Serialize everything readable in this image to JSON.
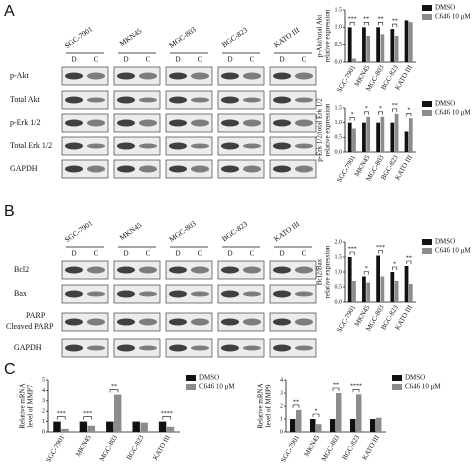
{
  "panels": {
    "a": "A",
    "b": "B",
    "c": "C"
  },
  "blot_a": {
    "cell_lines": [
      "SGC-7901",
      "MKN45",
      "MGC-803",
      "BGC-823",
      "KATO III"
    ],
    "lane_labels": [
      "D",
      "C"
    ],
    "rows": [
      "p-Akt",
      "Total Akt",
      "p-Erk 1/2",
      "Total Erk 1/2",
      "GAPDH"
    ]
  },
  "blot_b": {
    "cell_lines": [
      "SGC-7901",
      "MKN45",
      "MGC-803",
      "BGC-823",
      "KATO III"
    ],
    "lane_labels": [
      "D",
      "C"
    ],
    "rows": [
      "Bcl2",
      "Bax",
      "PARP",
      "Cleaved PARP",
      "GAPDH"
    ]
  },
  "chart_data": [
    {
      "type": "bar",
      "y_label": [
        "p-Akt/total Akt",
        "relative expression"
      ],
      "categories": [
        "SGC-7901",
        "MKN45",
        "MGC-803",
        "BGC-823",
        "KATO III"
      ],
      "series": [
        {
          "name": "DMSO",
          "color": "#111111",
          "values": [
            1.0,
            1.0,
            1.0,
            0.95,
            1.2
          ]
        },
        {
          "name": "C646 10 μM",
          "color": "#8c8c8c",
          "values": [
            0.1,
            0.75,
            0.8,
            0.75,
            1.15
          ]
        }
      ],
      "significance": [
        "***",
        "**",
        "**",
        "**",
        null
      ],
      "ylim": [
        0,
        1.5
      ],
      "yticks": [
        {
          "value": 0,
          "label": "0.0"
        },
        {
          "value": 0.5,
          "label": "0.5"
        },
        {
          "value": 1,
          "label": "1.0"
        },
        {
          "value": 1.5,
          "label": "1.5"
        }
      ],
      "legend": "right"
    },
    {
      "type": "bar",
      "y_label": [
        "p-Erk 1/2/total Erk 1/2",
        "relative expression"
      ],
      "categories": [
        "SGC-7901",
        "MKN45",
        "MGC-803",
        "BGC-823",
        "KATO III"
      ],
      "series": [
        {
          "name": "DMSO",
          "color": "#111111",
          "values": [
            1.0,
            1.0,
            1.0,
            1.0,
            0.7
          ]
        },
        {
          "name": "C646 10 μM",
          "color": "#8c8c8c",
          "values": [
            0.8,
            1.2,
            1.2,
            1.3,
            1.15
          ]
        }
      ],
      "significance": [
        "*",
        "*",
        "*",
        "**",
        "*"
      ],
      "ylim": [
        0,
        1.5
      ],
      "yticks": [
        {
          "value": 0,
          "label": "0.0"
        },
        {
          "value": 0.5,
          "label": "0.5"
        },
        {
          "value": 1,
          "label": "1.0"
        },
        {
          "value": 1.5,
          "label": "1.5"
        }
      ],
      "legend": "right"
    },
    {
      "type": "bar",
      "y_label": [
        "Bcl2/Bax",
        "relative expression"
      ],
      "categories": [
        "SGC-7901",
        "MKN45",
        "MGC-803",
        "BGC-823",
        "KATO III"
      ],
      "series": [
        {
          "name": "DMSO",
          "color": "#111111",
          "values": [
            1.5,
            0.85,
            1.55,
            1.0,
            1.2
          ]
        },
        {
          "name": "C646 10 μM",
          "color": "#8c8c8c",
          "values": [
            0.7,
            0.65,
            0.85,
            0.7,
            0.6
          ]
        }
      ],
      "significance": [
        "***",
        "*",
        "***",
        "*",
        "**"
      ],
      "ylim": [
        0,
        2
      ],
      "yticks": [
        {
          "value": 0,
          "label": "0.0"
        },
        {
          "value": 0.5,
          "label": "0.5"
        },
        {
          "value": 1,
          "label": "1.0"
        },
        {
          "value": 1.5,
          "label": "1.5"
        },
        {
          "value": 2,
          "label": "2.0"
        }
      ],
      "legend": "right"
    },
    {
      "type": "bar",
      "y_label": [
        "Relative mRNA",
        "level of MMP7"
      ],
      "categories": [
        "SGC-7901",
        "MKN45",
        "MGC-803",
        "BGC-823",
        "KATO III"
      ],
      "series": [
        {
          "name": "DMSO",
          "color": "#111111",
          "values": [
            1,
            1,
            1,
            1,
            1
          ]
        },
        {
          "name": "C646 10 μM",
          "color": "#8c8c8c",
          "values": [
            0.3,
            0.6,
            3.6,
            0.9,
            0.5
          ]
        }
      ],
      "significance": [
        "***",
        "***",
        "**",
        null,
        "****"
      ],
      "ylim": [
        0,
        5
      ],
      "yticks": [
        0,
        1,
        2,
        3,
        4,
        5
      ],
      "legend": "right"
    },
    {
      "type": "bar",
      "y_label": [
        "Relative mRNA",
        "level of MMP9"
      ],
      "categories": [
        "SGC-7901",
        "MKN45",
        "MGC-803",
        "BGC-823",
        "KATO III"
      ],
      "series": [
        {
          "name": "DMSO",
          "color": "#111111",
          "values": [
            1,
            1,
            1,
            1,
            1
          ]
        },
        {
          "name": "C646 10 μM",
          "color": "#8c8c8c",
          "values": [
            1.7,
            0.6,
            3.0,
            2.9,
            1.1
          ]
        }
      ],
      "significance": [
        "**",
        "*",
        "**",
        "****",
        null
      ],
      "ylim": [
        0,
        4
      ],
      "yticks": [
        0,
        1,
        2,
        3,
        4
      ],
      "legend": "right"
    }
  ]
}
